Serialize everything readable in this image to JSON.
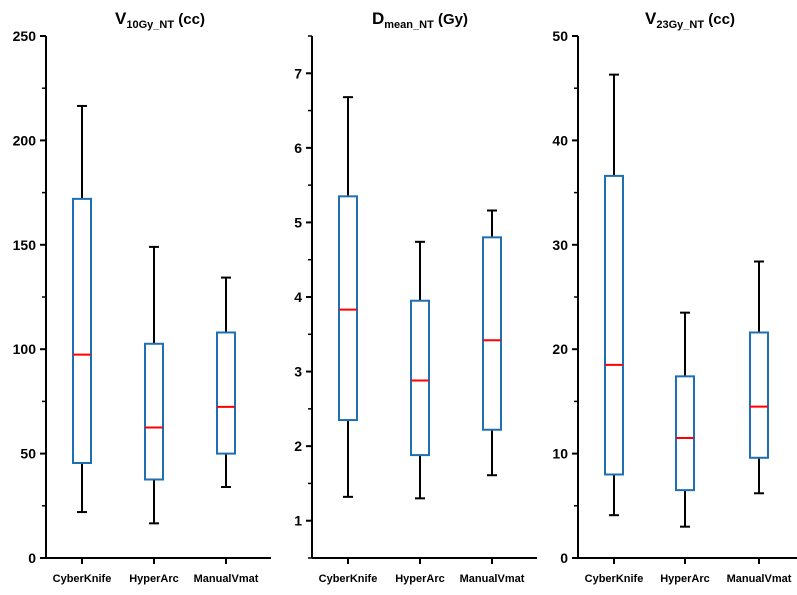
{
  "chart_data": [
    {
      "type": "box",
      "title": "V",
      "title_sub": "10Gy_NT",
      "title_unit": " (cc)",
      "categories": [
        "CyberKnife",
        "HyperArc",
        "ManualVmat"
      ],
      "ylim": [
        0,
        250
      ],
      "yticks": [
        0,
        50,
        100,
        150,
        200,
        250
      ],
      "boxes": [
        {
          "whisker_low": 22,
          "q1": 45.5,
          "median": 97.4,
          "q3": 172,
          "whisker_high": 216.5
        },
        {
          "whisker_low": 16.6,
          "q1": 37.6,
          "median": 62.5,
          "q3": 102.6,
          "whisker_high": 149
        },
        {
          "whisker_low": 34,
          "q1": 50,
          "median": 72.4,
          "q3": 108,
          "whisker_high": 134.3
        }
      ]
    },
    {
      "type": "box",
      "title": "D",
      "title_sub": "mean_NT",
      "title_unit": " (Gy)",
      "categories": [
        "CyberKnife",
        "HyperArc",
        "ManualVmat"
      ],
      "ylim": [
        0.5,
        7.5
      ],
      "yticks": [
        1,
        2,
        3,
        4,
        5,
        6,
        7
      ],
      "boxes": [
        {
          "whisker_low": 1.32,
          "q1": 2.35,
          "median": 3.83,
          "q3": 5.35,
          "whisker_high": 6.68
        },
        {
          "whisker_low": 1.3,
          "q1": 1.88,
          "median": 2.88,
          "q3": 3.95,
          "whisker_high": 4.74
        },
        {
          "whisker_low": 1.61,
          "q1": 2.22,
          "median": 3.42,
          "q3": 4.8,
          "whisker_high": 5.16
        }
      ]
    },
    {
      "type": "box",
      "title": "V",
      "title_sub": "23Gy_NT",
      "title_unit": " (cc)",
      "categories": [
        "CyberKnife",
        "HyperArc",
        "ManualVmat"
      ],
      "ylim": [
        0,
        50
      ],
      "yticks": [
        0,
        10,
        20,
        30,
        40,
        50
      ],
      "boxes": [
        {
          "whisker_low": 4.1,
          "q1": 8.0,
          "median": 18.5,
          "q3": 36.6,
          "whisker_high": 46.3
        },
        {
          "whisker_low": 3.0,
          "q1": 6.5,
          "median": 11.5,
          "q3": 17.4,
          "whisker_high": 23.5
        },
        {
          "whisker_low": 6.2,
          "q1": 9.6,
          "median": 14.5,
          "q3": 21.6,
          "whisker_high": 28.4
        }
      ]
    }
  ],
  "colors": {
    "box": "#1f6fb4",
    "median": "#ff0000",
    "axis": "#000000"
  }
}
